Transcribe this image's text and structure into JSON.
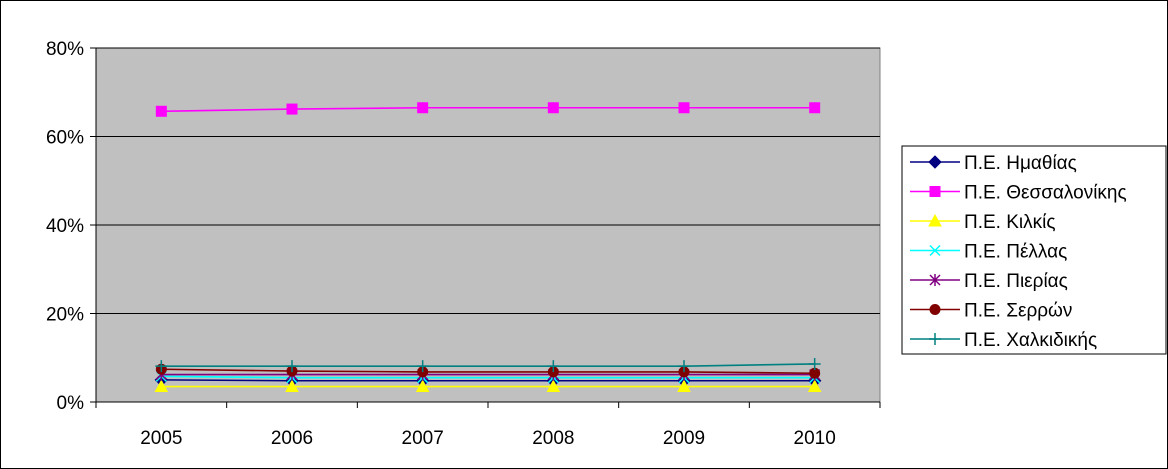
{
  "chart_data": {
    "type": "line",
    "title": "",
    "xlabel": "",
    "ylabel": "",
    "categories": [
      "2005",
      "2006",
      "2007",
      "2008",
      "2009",
      "2010"
    ],
    "ylim": [
      0,
      0.8
    ],
    "yticks": [
      {
        "value": 0,
        "label": "0%"
      },
      {
        "value": 0.2,
        "label": "20%"
      },
      {
        "value": 0.4,
        "label": "40%"
      },
      {
        "value": 0.6,
        "label": "60%"
      },
      {
        "value": 0.8,
        "label": "80%"
      }
    ],
    "grid": "horizontal",
    "plot_background": "#c0c0c0",
    "legend_position": "right",
    "series": [
      {
        "name": "Π.Ε. Ημαθίας",
        "color": "#000080",
        "marker": "diamond",
        "values": [
          0.05,
          0.048,
          0.048,
          0.048,
          0.048,
          0.048
        ]
      },
      {
        "name": "Π.Ε. Θεσσαλονίκης",
        "color": "#ff00ff",
        "marker": "square",
        "values": [
          0.657,
          0.662,
          0.665,
          0.665,
          0.665,
          0.665
        ]
      },
      {
        "name": "Π.Ε. Κιλκίς",
        "color": "#ffff00",
        "marker": "triangle",
        "values": [
          0.035,
          0.035,
          0.035,
          0.035,
          0.035,
          0.035
        ]
      },
      {
        "name": "Π.Ε. Πέλλας",
        "color": "#00ffff",
        "marker": "x",
        "values": [
          0.058,
          0.055,
          0.055,
          0.055,
          0.055,
          0.055
        ]
      },
      {
        "name": "Π.Ε. Πιερίας",
        "color": "#800080",
        "marker": "star",
        "values": [
          0.062,
          0.062,
          0.062,
          0.062,
          0.062,
          0.062
        ]
      },
      {
        "name": "Π.Ε. Σερρών",
        "color": "#800000",
        "marker": "circle",
        "values": [
          0.074,
          0.07,
          0.068,
          0.068,
          0.068,
          0.065
        ]
      },
      {
        "name": "Π.Ε. Χαλκιδικής",
        "color": "#008080",
        "marker": "plus",
        "values": [
          0.081,
          0.081,
          0.081,
          0.081,
          0.081,
          0.086
        ]
      }
    ]
  }
}
